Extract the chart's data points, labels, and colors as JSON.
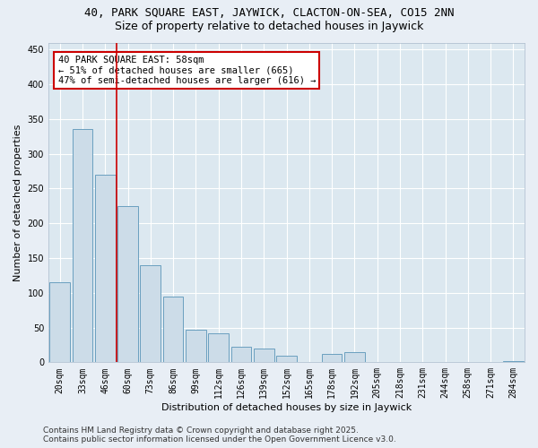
{
  "title": "40, PARK SQUARE EAST, JAYWICK, CLACTON-ON-SEA, CO15 2NN",
  "subtitle": "Size of property relative to detached houses in Jaywick",
  "xlabel": "Distribution of detached houses by size in Jaywick",
  "ylabel": "Number of detached properties",
  "categories": [
    "20sqm",
    "33sqm",
    "46sqm",
    "60sqm",
    "73sqm",
    "86sqm",
    "99sqm",
    "112sqm",
    "126sqm",
    "139sqm",
    "152sqm",
    "165sqm",
    "178sqm",
    "192sqm",
    "205sqm",
    "218sqm",
    "231sqm",
    "244sqm",
    "258sqm",
    "271sqm",
    "284sqm"
  ],
  "values": [
    115,
    335,
    270,
    225,
    140,
    95,
    47,
    42,
    22,
    20,
    10,
    0,
    12,
    14,
    0,
    0,
    0,
    0,
    0,
    0,
    2
  ],
  "bar_color": "#ccdce8",
  "bar_edge_color": "#6a9fbf",
  "vline_x": 2.5,
  "vline_color": "#cc0000",
  "annotation_text": "40 PARK SQUARE EAST: 58sqm\n← 51% of detached houses are smaller (665)\n47% of semi-detached houses are larger (616) →",
  "annotation_box_color": "white",
  "annotation_box_edge_color": "#cc0000",
  "ylim": [
    0,
    460
  ],
  "yticks": [
    0,
    50,
    100,
    150,
    200,
    250,
    300,
    350,
    400,
    450
  ],
  "footer": "Contains HM Land Registry data © Crown copyright and database right 2025.\nContains public sector information licensed under the Open Government Licence v3.0.",
  "background_color": "#e8eef5",
  "plot_bg_color": "#dce8f0",
  "title_fontsize": 9,
  "subtitle_fontsize": 9,
  "axis_label_fontsize": 8,
  "tick_fontsize": 7,
  "footer_fontsize": 6.5
}
